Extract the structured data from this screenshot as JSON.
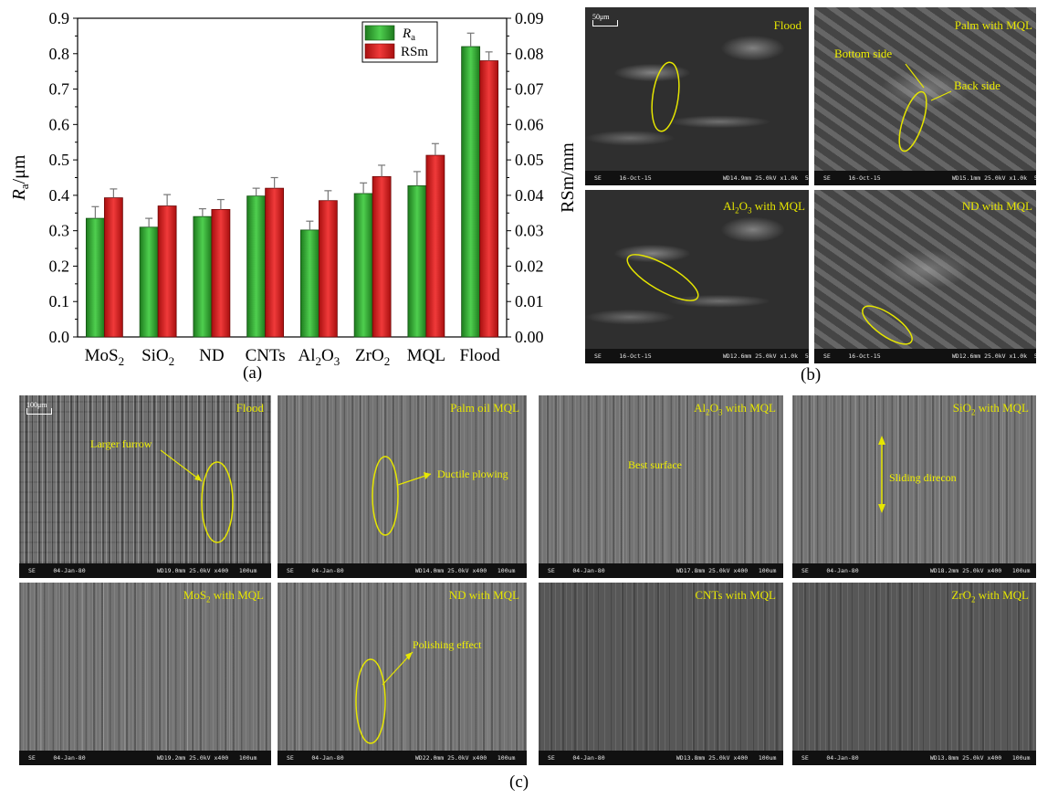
{
  "chart_data": {
    "type": "bar",
    "categories": [
      "MoS2",
      "SiO2",
      "ND",
      "CNTs",
      "Al2O3",
      "ZrO2",
      "MQL",
      "Flood"
    ],
    "category_labels": [
      {
        "base": "MoS",
        "sub": "2",
        "tail": ""
      },
      {
        "base": "SiO",
        "sub": "2",
        "tail": ""
      },
      {
        "base": "ND",
        "sub": "",
        "tail": ""
      },
      {
        "base": "CNTs",
        "sub": "",
        "tail": ""
      },
      {
        "base": "Al",
        "sub": "2",
        "tail": "O",
        "sub2": "3"
      },
      {
        "base": "ZrO",
        "sub": "2",
        "tail": ""
      },
      {
        "base": "MQL",
        "sub": "",
        "tail": ""
      },
      {
        "base": "Flood",
        "sub": "",
        "tail": ""
      }
    ],
    "series": [
      {
        "name": "Ra",
        "axis": "left",
        "color": "#2e9e2e",
        "values": [
          0.335,
          0.31,
          0.34,
          0.398,
          0.302,
          0.405,
          0.427,
          0.82
        ],
        "errors": [
          0.033,
          0.025,
          0.022,
          0.022,
          0.025,
          0.03,
          0.04,
          0.038
        ]
      },
      {
        "name": "RSm",
        "axis": "right",
        "color": "#d42020",
        "values": [
          0.0393,
          0.037,
          0.036,
          0.042,
          0.0385,
          0.0453,
          0.0513,
          0.078
        ],
        "errors": [
          0.0025,
          0.0032,
          0.0028,
          0.003,
          0.0028,
          0.0032,
          0.0033,
          0.0025
        ]
      }
    ],
    "legend": {
      "ra_label_main": "R",
      "ra_label_sub": "a",
      "rsm_label": "RSm",
      "position": "top-right"
    },
    "ylabel_left": {
      "main": "R",
      "sub": "a",
      "tail": "/μm"
    },
    "ylabel_right": "RSm/mm",
    "ylim_left": [
      0,
      0.9
    ],
    "ylim_right": [
      0,
      0.09
    ],
    "yticks_left": [
      "0.0",
      "0.1",
      "0.2",
      "0.3",
      "0.4",
      "0.5",
      "0.6",
      "0.7",
      "0.8",
      "0.9"
    ],
    "yticks_right": [
      "0.00",
      "0.01",
      "0.02",
      "0.03",
      "0.04",
      "0.05",
      "0.06",
      "0.07",
      "0.08",
      "0.09"
    ],
    "panel_label": "(a)"
  },
  "panel_b": {
    "label": "(b)",
    "scale_text": "50μm",
    "images": [
      {
        "caption": "Flood",
        "notes": [],
        "bar": "SE     16-Oct-15                    WD14.9mm 25.0kV x1.0k  50um"
      },
      {
        "caption": "Palm with MQL",
        "notes": [
          "Bottom side",
          "Back side"
        ],
        "bar": "SE     16-Oct-15                    WD15.1mm 25.0kV x1.0k  50um"
      },
      {
        "caption_main": "Al",
        "caption_sub1": "2",
        "caption_mid": "O",
        "caption_sub2": "3",
        "caption_tail": " with MQL",
        "notes": [],
        "bar": "SE     16-Oct-15                    WD12.6mm 25.0kV x1.0k  50um"
      },
      {
        "caption": "ND with MQL",
        "notes": [],
        "bar": "SE     16-Oct-15                    WD12.6mm 25.0kV x1.0k  50um"
      }
    ]
  },
  "panel_c": {
    "label": "(c)",
    "scale_text": "100μm",
    "images": [
      {
        "caption": "Flood",
        "note": "Larger furrow",
        "bar": "SE     04-Jan-80                    WD19.0mm 25.0kV x400   100um"
      },
      {
        "caption": "Palm oil MQL",
        "note": "Ductile plowing",
        "bar": "SE     04-Jan-80                    WD14.0mm 25.0kV x400   100um"
      },
      {
        "caption": "Al2O3 with MQL",
        "note": "Best surface",
        "bar": "SE     04-Jan-80                    WD17.8mm 25.0kV x400   100um"
      },
      {
        "caption": "SiO2 with MQL",
        "note": "Sliding direcon",
        "bar": "SE     04-Jan-80                    WD18.2mm 25.0kV x400   100um"
      },
      {
        "caption": "MoS2 with MQL",
        "note": "",
        "bar": "SE     04-Jan-80                    WD19.2mm 25.0kV x400   100um"
      },
      {
        "caption": "ND with MQL",
        "note": "Polishing effect",
        "bar": "SE     04-Jan-80                    WD22.0mm 25.0kV x400   100um"
      },
      {
        "caption": "CNTs with MQL",
        "note": "",
        "bar": "SE     04-Jan-80                    WD13.8mm 25.0kV x400   100um"
      },
      {
        "caption": "ZrO2 with MQL",
        "note": "",
        "bar": "SE     04-Jan-80                    WD13.8mm 25.0kV x400   100um"
      }
    ]
  }
}
